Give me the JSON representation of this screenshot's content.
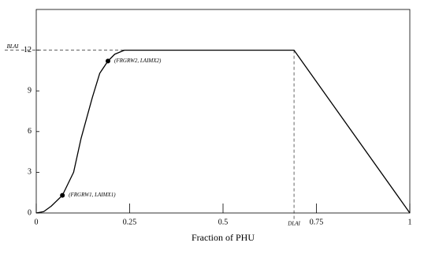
{
  "chart_data": {
    "type": "line",
    "x_label": "Fraction of PHU",
    "x": [
      0,
      0.02,
      0.04,
      0.07,
      0.1,
      0.12,
      0.15,
      0.17,
      0.192,
      0.21,
      0.236,
      0.69,
      1
    ],
    "series": [
      {
        "color": "#000000",
        "values": [
          0,
          0.1,
          0.5,
          1.3,
          3,
          5.5,
          8.5,
          10.3,
          11.2,
          11.7,
          12,
          12,
          0
        ]
      }
    ],
    "xlim": [
      0,
      1
    ],
    "ylim": [
      0,
      15
    ],
    "xticks": [
      0,
      0.25,
      0.5,
      0.75,
      1
    ],
    "yticks": [
      0,
      3,
      6,
      9,
      12
    ],
    "points": [
      {
        "x": 0.07,
        "y": 1.3,
        "label": "(FRGRW1, LAIMX1)"
      },
      {
        "x": 0.192,
        "y": 11.2,
        "label": "(FRGRW2, LAIMX2)"
      }
    ],
    "annotations": [
      {
        "text": "BLAI",
        "y": 12
      },
      {
        "text": "DLAI",
        "x": 0.69
      }
    ]
  }
}
